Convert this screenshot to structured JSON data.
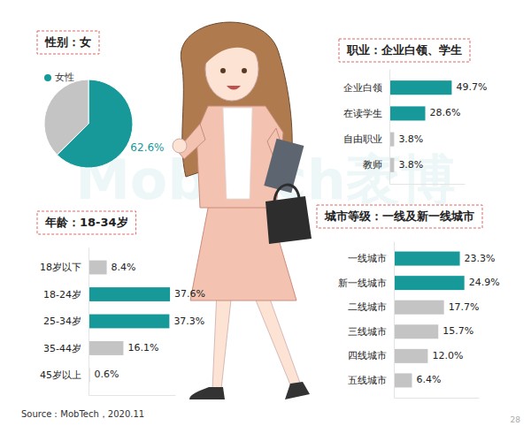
{
  "chart_data": [
    {
      "type": "pie",
      "title": "性别：女",
      "categories": [
        "女性",
        null
      ],
      "values": [
        62.6,
        37.4
      ],
      "colors": [
        "#17999a",
        "#c4c4c4"
      ],
      "data_labels": true,
      "value_labels": [
        "62.6%",
        null
      ],
      "legend": "top-left"
    },
    {
      "type": "bar",
      "title": "职业：企业白领、学生",
      "orientation": "horizontal",
      "categories": [
        "企业白领",
        "在读学生",
        "自由职业",
        "教师"
      ],
      "values": [
        49.7,
        28.6,
        3.8,
        3.8
      ],
      "value_labels": [
        "49.7%",
        "28.6%",
        "3.8%",
        "3.8%"
      ],
      "colors": [
        "#17999a",
        "#17999a",
        "#c4c4c4",
        "#c4c4c4"
      ],
      "xlim": [
        0,
        60
      ],
      "data_labels": true,
      "tick_labels": "y"
    },
    {
      "type": "bar",
      "title": "年龄：18-34岁",
      "orientation": "horizontal",
      "categories": [
        "18岁以下",
        "18-24岁",
        "25-34岁",
        "35-44岁",
        "45岁以上"
      ],
      "values": [
        8.4,
        37.6,
        37.3,
        16.1,
        0.6
      ],
      "value_labels": [
        "8.4%",
        "37.6%",
        "37.3%",
        "16.1%",
        "0.6%"
      ],
      "colors": [
        "#c4c4c4",
        "#17999a",
        "#17999a",
        "#c4c4c4",
        "#c4c4c4"
      ],
      "xlim": [
        0,
        40
      ],
      "data_labels": true,
      "tick_labels": "y"
    },
    {
      "type": "bar",
      "title": "城市等级：一线及新一线城市",
      "orientation": "horizontal",
      "categories": [
        "一线城市",
        "新一线城市",
        "二线城市",
        "三线城市",
        "四线城市",
        "五线城市"
      ],
      "values": [
        23.3,
        24.9,
        17.7,
        15.7,
        12.0,
        6.4
      ],
      "value_labels": [
        "23.3%",
        "24.9%",
        "17.7%",
        "15.7%",
        "12.0%",
        "6.4%"
      ],
      "colors": [
        "#17999a",
        "#17999a",
        "#c4c4c4",
        "#c4c4c4",
        "#c4c4c4",
        "#c4c4c4"
      ],
      "xlim": [
        0,
        30
      ],
      "data_labels": true,
      "tick_labels": "y"
    }
  ],
  "watermark": "MobTech袤博",
  "source": "Source：MobTech，2020.11",
  "page_number": 28
}
